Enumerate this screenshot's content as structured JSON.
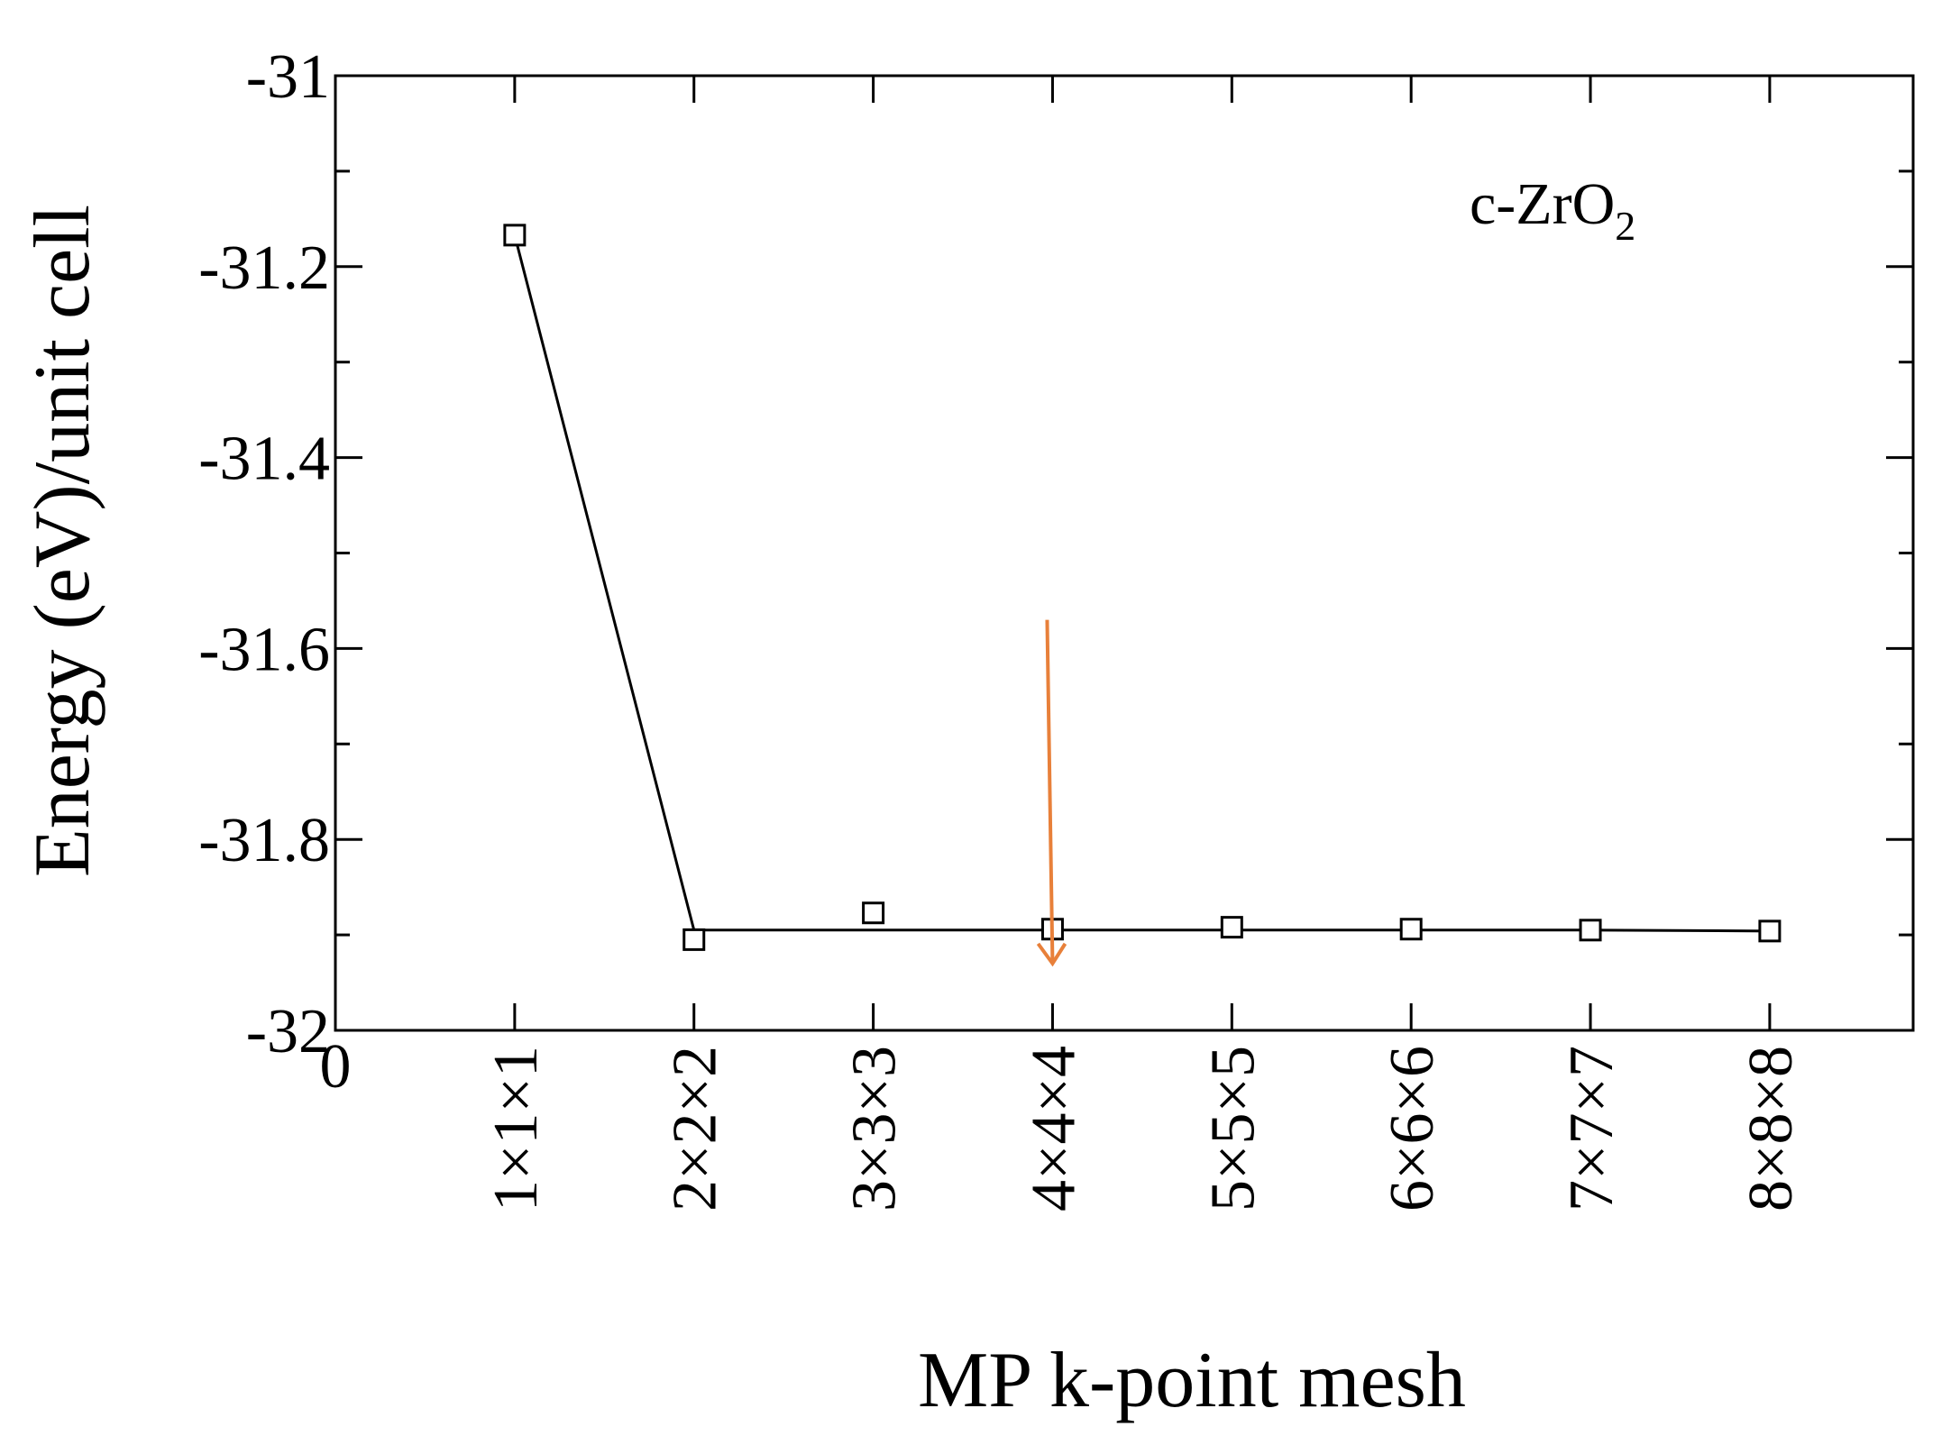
{
  "chart_data": {
    "type": "line",
    "title": "",
    "xlabel": "MP k-point mesh",
    "ylabel": "Energy (eV)/unit cell",
    "annotation": {
      "text": "c-ZrO",
      "subscript": "2"
    },
    "x_origin_label": "0",
    "categories": [
      "1×1×1",
      "2×2×2",
      "3×3×3",
      "4×4×4",
      "5×5×5",
      "6×6×6",
      "7×7×7",
      "8×8×8"
    ],
    "xlim": [
      0,
      8.8
    ],
    "ylim": [
      -32,
      -31
    ],
    "yticks": [
      -31,
      -31.2,
      -31.4,
      -31.6,
      -31.8,
      -32
    ],
    "ytick_labels": [
      "-31",
      "-31.2",
      "-31.4",
      "-31.6",
      "-31.8",
      "-32"
    ],
    "yminor": [
      -31.1,
      -31.3,
      -31.5,
      -31.7,
      -31.9
    ],
    "series": [
      {
        "marker": "open-square",
        "x": [
          1,
          2,
          3,
          4,
          5,
          6,
          7,
          8
        ],
        "values": [
          -31.167,
          -31.905,
          -31.877,
          -31.894,
          -31.892,
          -31.894,
          -31.895,
          -31.896
        ]
      }
    ],
    "line": {
      "x": [
        1,
        2,
        3,
        4,
        5,
        6,
        7,
        8
      ],
      "values": [
        -31.167,
        -31.895,
        -31.895,
        -31.895,
        -31.895,
        -31.895,
        -31.895,
        -31.896
      ]
    },
    "arrow": {
      "x": 4,
      "from_y": -31.57,
      "to_y": -31.93,
      "color": "#e8803a"
    },
    "grid": false,
    "legend": "none"
  }
}
